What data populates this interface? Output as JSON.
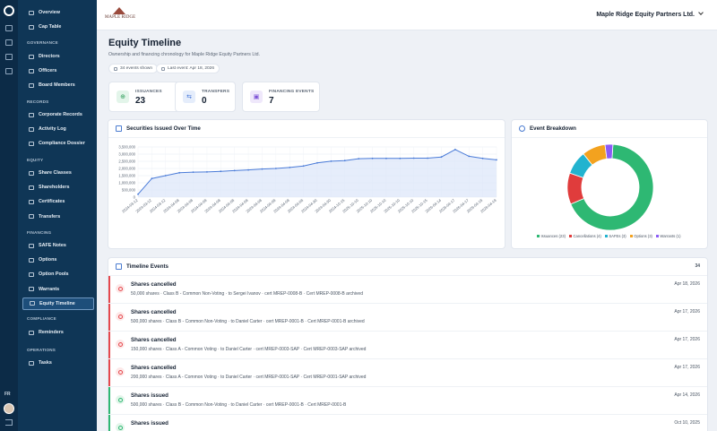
{
  "app": {
    "brand_name": "MAPLE RIDGE",
    "company": "Maple Ridge Equity Partners Ltd.",
    "user_initials": "FR"
  },
  "sidebar": {
    "top_items": [
      {
        "label": "Overview",
        "icon": "home-icon"
      },
      {
        "label": "Cap Table",
        "icon": "table-icon"
      }
    ],
    "sections": [
      {
        "title": "GOVERNANCE",
        "items": [
          {
            "label": "Directors",
            "icon": "user-icon"
          },
          {
            "label": "Officers",
            "icon": "briefcase-icon"
          },
          {
            "label": "Board Members",
            "icon": "users-icon"
          }
        ]
      },
      {
        "title": "RECORDS",
        "items": [
          {
            "label": "Corporate Records",
            "icon": "book-icon"
          },
          {
            "label": "Activity Log",
            "icon": "activity-icon"
          },
          {
            "label": "Compliance Dossier",
            "icon": "folder-icon"
          }
        ]
      },
      {
        "title": "EQUITY",
        "items": [
          {
            "label": "Share Classes",
            "icon": "layers-icon"
          },
          {
            "label": "Shareholders",
            "icon": "users-icon"
          },
          {
            "label": "Certificates",
            "icon": "certificate-icon"
          },
          {
            "label": "Transfers",
            "icon": "transfer-icon"
          }
        ]
      },
      {
        "title": "FINANCING",
        "items": [
          {
            "label": "SAFE Notes",
            "icon": "document-icon"
          },
          {
            "label": "Options",
            "icon": "clock-icon"
          },
          {
            "label": "Option Pools",
            "icon": "pool-icon"
          },
          {
            "label": "Warrants",
            "icon": "shield-icon"
          },
          {
            "label": "Equity Timeline",
            "icon": "clock-icon",
            "active": true
          }
        ]
      },
      {
        "title": "COMPLIANCE",
        "items": [
          {
            "label": "Reminders",
            "icon": "bell-icon"
          }
        ]
      },
      {
        "title": "OPERATIONS",
        "items": [
          {
            "label": "Tasks",
            "icon": "check-icon"
          }
        ]
      }
    ]
  },
  "page": {
    "title": "Equity Timeline",
    "subtitle": "Ownership and financing chronology for Maple Ridge Equity Partners Ltd.",
    "events_shown": "34 events shown",
    "last_event": "Last event: Apr 18, 2026"
  },
  "stats": [
    {
      "label": "ISSUANCES",
      "value": "23",
      "color": "#2e9d5a",
      "bg": "#e3f5ea",
      "icon": "plus-circle-icon"
    },
    {
      "label": "TRANSFERS",
      "value": "0",
      "color": "#3b6fd6",
      "bg": "#e5edfb",
      "icon": "transfer-icon"
    },
    {
      "label": "FINANCING EVENTS",
      "value": "7",
      "color": "#7b4fd6",
      "bg": "#efe8fb",
      "icon": "wallet-icon"
    }
  ],
  "line_card": {
    "title": "Securities Issued Over Time"
  },
  "donut_card": {
    "title": "Event Breakdown"
  },
  "chart_data": [
    {
      "type": "area",
      "title": "Securities Issued Over Time",
      "x": [
        "2024-03-12",
        "2024-03-12",
        "2024-03-12",
        "2024-04-08",
        "2024-04-08",
        "2024-04-08",
        "2024-04-08",
        "2024-04-08",
        "2024-04-08",
        "2024-04-08",
        "2024-04-08",
        "2024-04-08",
        "2024-04-08",
        "2024-04-30",
        "2024-04-30",
        "2024-10-15",
        "2025-10-10",
        "2025-10-10",
        "2025-10-10",
        "2025-10-10",
        "2025-10-10",
        "2025-10-15",
        "2026-04-14",
        "2026-04-17",
        "2026-04-17",
        "2026-04-18",
        "2026-04-18"
      ],
      "x_tick_labels": [
        "2024-03-12",
        "2024-03-12",
        "2024-03-12",
        "2024-04-08",
        "2024-04-08",
        "2024-04-08",
        "2024-04-08",
        "2024-04-08",
        "2024-04-08",
        "2024-04-08",
        "2024-04-08",
        "2024-04-08",
        "2024-04-08",
        "2024-04-30",
        "2024-04-30",
        "2024-10-15",
        "2025-10-10",
        "2025-10-10",
        "2025-10-10",
        "2025-10-10",
        "2025-10-10",
        "2025-10-15",
        "2026-04-14",
        "2026-04-17",
        "2026-04-17",
        "2026-04-18",
        "2026-04-18"
      ],
      "y": [
        200000,
        1300000,
        1500000,
        1700000,
        1740000,
        1760000,
        1800000,
        1850000,
        1900000,
        1960000,
        2000000,
        2070000,
        2170000,
        2390000,
        2510000,
        2550000,
        2680000,
        2700000,
        2700000,
        2700000,
        2720000,
        2720000,
        2800000,
        3320000,
        2850000,
        2700000,
        2600000
      ],
      "ylim": [
        0,
        3500000
      ],
      "y_ticks": [
        "0",
        "500,000",
        "1,000,000",
        "1,500,000",
        "2,000,000",
        "2,500,000",
        "3,000,000",
        "3,500,000"
      ],
      "grid": true,
      "color": "#4a7bd8"
    },
    {
      "type": "pie",
      "title": "Event Breakdown",
      "hole": true,
      "legend_position": "bottom",
      "slices": [
        {
          "label": "Issuances (23)",
          "value": 23,
          "color": "#2eb873"
        },
        {
          "label": "Cancellations (4)",
          "value": 4,
          "color": "#e03c3c"
        },
        {
          "label": "SAFEs (3)",
          "value": 3,
          "color": "#22b3cf"
        },
        {
          "label": "Options (3)",
          "value": 3,
          "color": "#f3a21f"
        },
        {
          "label": "Warrants (1)",
          "value": 1,
          "color": "#8b5cf6"
        }
      ]
    }
  ],
  "timeline": {
    "title": "Timeline Events",
    "count": "34",
    "events": [
      {
        "kind": "cancel",
        "title": "Shares cancelled",
        "detail": "50,000 shares · Class B - Common Non-Voting · to Sergei Ivanov · cert MREP-0008-B · Cert MREP-0008-B archived",
        "date": "Apr 18, 2026"
      },
      {
        "kind": "cancel",
        "title": "Shares cancelled",
        "detail": "500,000 shares · Class B - Common Non-Voting · to Daniel Carter · cert MREP-0001-B · Cert MREP-0001-B archived",
        "date": "Apr 17, 2026"
      },
      {
        "kind": "cancel",
        "title": "Shares cancelled",
        "detail": "150,000 shares · Class A - Common Voting · to Daniel Carter · cert MREP-0003-SAP · Cert MREP-0003-SAP archived",
        "date": "Apr 17, 2026"
      },
      {
        "kind": "cancel",
        "title": "Shares cancelled",
        "detail": "200,000 shares · Class A - Common Voting · to Daniel Carter · cert MREP-0001-SAP · Cert MREP-0001-SAP archived",
        "date": "Apr 17, 2026"
      },
      {
        "kind": "issue",
        "title": "Shares issued",
        "detail": "500,000 shares · Class B - Common Non-Voting · to Daniel Carter · cert MREP-0001-B · Cert MREP-0001-B",
        "date": "Apr 14, 2026"
      },
      {
        "kind": "issue",
        "title": "Shares issued",
        "detail": "",
        "date": "Oct 10, 2025"
      }
    ]
  },
  "colors": {
    "cancel": "#e5484d",
    "cancel_bg": "#fde8e8",
    "issue": "#2eb873",
    "issue_bg": "#e3f5ea"
  }
}
